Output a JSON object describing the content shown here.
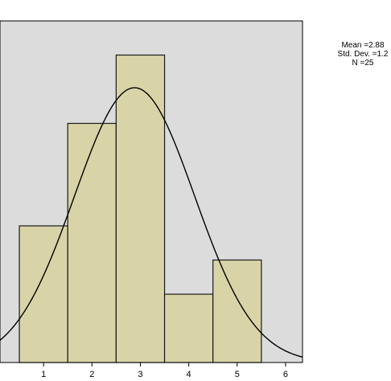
{
  "chart_data": {
    "type": "bar",
    "subtype": "histogram-with-normal-curve",
    "bins": [
      {
        "x0": 0.5,
        "x1": 1.5,
        "count": 4
      },
      {
        "x0": 1.5,
        "x1": 2.5,
        "count": 7
      },
      {
        "x0": 2.5,
        "x1": 3.5,
        "count": 9
      },
      {
        "x0": 3.5,
        "x1": 4.5,
        "count": 2
      },
      {
        "x0": 4.5,
        "x1": 5.5,
        "count": 3
      }
    ],
    "normal_curve": {
      "mean": 2.88,
      "sd": 1.24,
      "n": 25,
      "bin_width": 1
    },
    "xlim": [
      0.1,
      6.35
    ],
    "ylim": [
      0,
      10
    ],
    "xticks": [
      "1",
      "2",
      "3",
      "4",
      "5",
      "6"
    ],
    "xtick_values": [
      1,
      2,
      3,
      4,
      5,
      6
    ],
    "legend_stats": [
      "Mean =2.88",
      "Std. Dev. =1.2",
      "N =25"
    ],
    "colors": {
      "plot_background": "#dcdcdc",
      "bar_fill": "#d8d4a8",
      "bar_stroke": "#1a1a1a",
      "curve": "#000000",
      "page_background": "#ffffff"
    },
    "grid": false
  }
}
